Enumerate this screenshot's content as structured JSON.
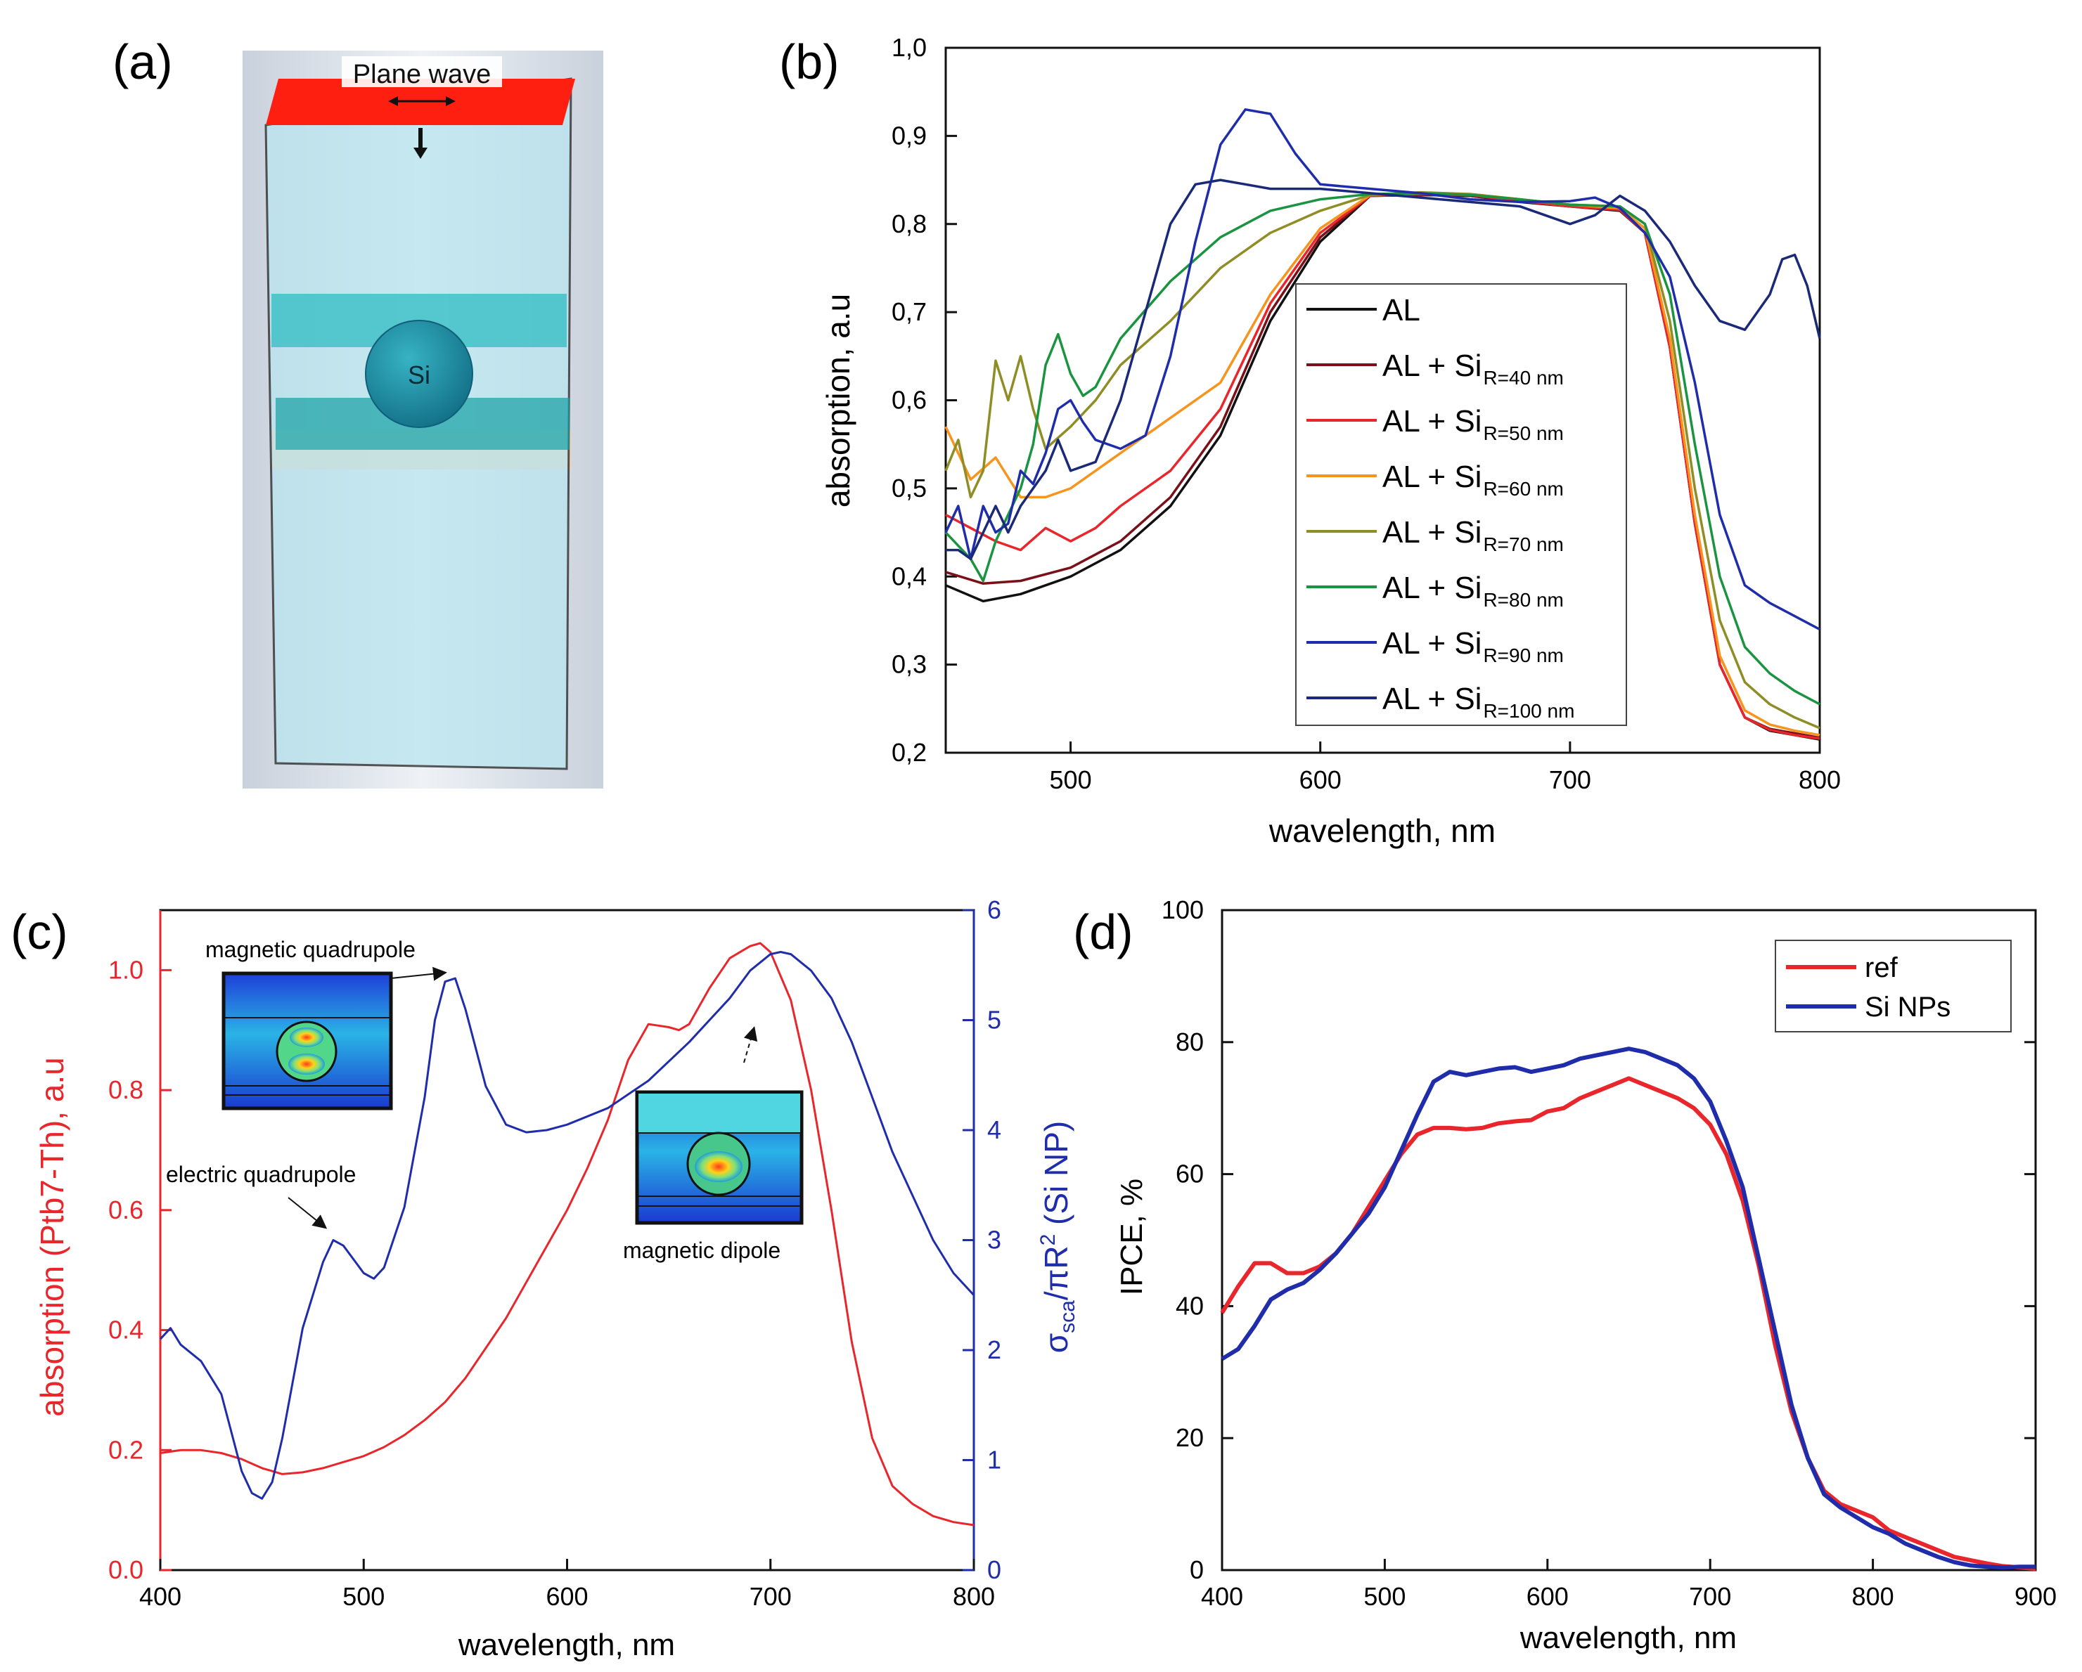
{
  "panel_labels": {
    "a": "(a)",
    "b": "(b)",
    "c": "(c)",
    "d": "(d)"
  },
  "schematic": {
    "plane_wave_label": "Plane wave",
    "particle_label": "Si",
    "colors": {
      "source": "#ff2a1a",
      "medium": "#b8e4ee",
      "layer": "#2bb5bd",
      "particle": "#1a7f95",
      "substrate": "#f0c8a0"
    }
  },
  "colors": {
    "red": "#e8262b",
    "blue": "#1f2dab",
    "black": "#111111"
  },
  "chart_data": [
    {
      "panel": "b",
      "type": "line",
      "xlabel": "wavelength, nm",
      "ylabel": "absorption, a.u",
      "xlim": [
        450,
        800
      ],
      "ylim": [
        0.2,
        1.0
      ],
      "xticks": [
        500,
        600,
        700,
        800
      ],
      "yticks": [
        "0,2",
        "0,3",
        "0,4",
        "0,5",
        "0,6",
        "0,7",
        "0,8",
        "0,9",
        "1,0"
      ],
      "legend_position": "center-right",
      "series": [
        {
          "name": "AL",
          "base": "AL",
          "sub": "",
          "color": "#111111",
          "x": [
            450,
            465,
            480,
            500,
            520,
            540,
            560,
            580,
            600,
            620,
            640,
            660,
            680,
            700,
            720,
            730,
            740,
            750,
            760,
            770,
            780,
            790,
            800
          ],
          "y": [
            0.39,
            0.372,
            0.38,
            0.4,
            0.43,
            0.48,
            0.56,
            0.69,
            0.78,
            0.832,
            0.833,
            0.832,
            0.825,
            0.82,
            0.815,
            0.79,
            0.66,
            0.46,
            0.3,
            0.24,
            0.225,
            0.22,
            0.215
          ]
        },
        {
          "name": "AL + Si R=40 nm",
          "base": "AL + Si",
          "sub": "R=40 nm",
          "color": "#7a1018",
          "x": [
            450,
            465,
            480,
            500,
            520,
            540,
            560,
            580,
            600,
            620,
            640,
            660,
            680,
            700,
            720,
            730,
            740,
            750,
            760,
            770,
            780,
            790,
            800
          ],
          "y": [
            0.405,
            0.392,
            0.395,
            0.41,
            0.44,
            0.49,
            0.57,
            0.7,
            0.785,
            0.832,
            0.833,
            0.832,
            0.826,
            0.821,
            0.816,
            0.79,
            0.66,
            0.46,
            0.3,
            0.24,
            0.227,
            0.222,
            0.217
          ]
        },
        {
          "name": "AL + Si R=50 nm",
          "base": "AL + Si",
          "sub": "R=50 nm",
          "color": "#e8262b",
          "x": [
            450,
            460,
            470,
            480,
            490,
            500,
            510,
            520,
            540,
            560,
            580,
            600,
            620,
            640,
            660,
            680,
            700,
            720,
            730,
            740,
            750,
            760,
            770,
            780,
            790,
            800
          ],
          "y": [
            0.47,
            0.455,
            0.44,
            0.43,
            0.455,
            0.44,
            0.455,
            0.48,
            0.52,
            0.59,
            0.71,
            0.79,
            0.832,
            0.834,
            0.833,
            0.826,
            0.82,
            0.816,
            0.79,
            0.66,
            0.46,
            0.3,
            0.24,
            0.226,
            0.22,
            0.216
          ]
        },
        {
          "name": "AL + Si R=60 nm",
          "base": "AL + Si",
          "sub": "R=60 nm",
          "color": "#f7941d",
          "x": [
            450,
            460,
            470,
            480,
            490,
            500,
            510,
            520,
            540,
            560,
            580,
            600,
            620,
            640,
            660,
            680,
            700,
            720,
            730,
            740,
            750,
            760,
            770,
            780,
            790,
            800
          ],
          "y": [
            0.57,
            0.51,
            0.535,
            0.49,
            0.49,
            0.5,
            0.52,
            0.54,
            0.58,
            0.62,
            0.72,
            0.795,
            0.833,
            0.835,
            0.834,
            0.828,
            0.822,
            0.818,
            0.795,
            0.67,
            0.47,
            0.31,
            0.248,
            0.232,
            0.225,
            0.22
          ]
        },
        {
          "name": "AL + Si R=70 nm",
          "base": "AL + Si",
          "sub": "R=70 nm",
          "color": "#8f8d25",
          "x": [
            450,
            455,
            460,
            465,
            470,
            475,
            480,
            485,
            490,
            500,
            510,
            520,
            540,
            560,
            580,
            600,
            620,
            640,
            660,
            680,
            700,
            720,
            730,
            740,
            750,
            760,
            770,
            780,
            790,
            800
          ],
          "y": [
            0.52,
            0.555,
            0.49,
            0.52,
            0.645,
            0.6,
            0.65,
            0.59,
            0.545,
            0.57,
            0.6,
            0.64,
            0.69,
            0.75,
            0.79,
            0.815,
            0.833,
            0.836,
            0.834,
            0.828,
            0.822,
            0.82,
            0.8,
            0.69,
            0.5,
            0.35,
            0.28,
            0.255,
            0.24,
            0.228
          ]
        },
        {
          "name": "AL + Si R=80 nm",
          "base": "AL + Si",
          "sub": "R=80 nm",
          "color": "#1a9440",
          "x": [
            450,
            460,
            465,
            470,
            480,
            485,
            490,
            495,
            500,
            505,
            510,
            520,
            540,
            560,
            580,
            600,
            620,
            640,
            660,
            680,
            700,
            720,
            730,
            740,
            750,
            760,
            770,
            780,
            790,
            800
          ],
          "y": [
            0.45,
            0.42,
            0.395,
            0.44,
            0.5,
            0.55,
            0.64,
            0.675,
            0.63,
            0.605,
            0.615,
            0.67,
            0.735,
            0.785,
            0.815,
            0.828,
            0.834,
            0.835,
            0.833,
            0.828,
            0.822,
            0.82,
            0.8,
            0.72,
            0.55,
            0.4,
            0.32,
            0.29,
            0.27,
            0.255
          ]
        },
        {
          "name": "AL + Si R=90 nm",
          "base": "AL + Si",
          "sub": "R=90 nm",
          "color": "#1f2dab",
          "x": [
            450,
            455,
            460,
            465,
            470,
            475,
            480,
            485,
            490,
            495,
            500,
            505,
            510,
            520,
            530,
            540,
            550,
            560,
            570,
            580,
            590,
            600,
            620,
            640,
            660,
            680,
            700,
            710,
            720,
            730,
            740,
            750,
            760,
            770,
            780,
            790,
            800
          ],
          "y": [
            0.45,
            0.48,
            0.42,
            0.48,
            0.45,
            0.46,
            0.52,
            0.505,
            0.54,
            0.59,
            0.6,
            0.575,
            0.555,
            0.545,
            0.56,
            0.65,
            0.78,
            0.89,
            0.93,
            0.925,
            0.88,
            0.845,
            0.84,
            0.835,
            0.828,
            0.825,
            0.826,
            0.83,
            0.818,
            0.79,
            0.74,
            0.62,
            0.47,
            0.39,
            0.37,
            0.355,
            0.34
          ]
        },
        {
          "name": "AL + Si R=100 nm",
          "base": "AL + Si",
          "sub": "R=100 nm",
          "color": "#1b2a78",
          "x": [
            450,
            455,
            460,
            465,
            470,
            475,
            480,
            485,
            490,
            495,
            500,
            510,
            520,
            530,
            540,
            550,
            560,
            570,
            580,
            600,
            620,
            640,
            660,
            680,
            700,
            710,
            720,
            730,
            740,
            750,
            760,
            770,
            780,
            785,
            790,
            795,
            800
          ],
          "y": [
            0.43,
            0.43,
            0.42,
            0.45,
            0.48,
            0.45,
            0.48,
            0.5,
            0.52,
            0.555,
            0.52,
            0.53,
            0.6,
            0.7,
            0.8,
            0.845,
            0.85,
            0.845,
            0.84,
            0.84,
            0.835,
            0.83,
            0.825,
            0.82,
            0.8,
            0.81,
            0.832,
            0.815,
            0.78,
            0.73,
            0.69,
            0.68,
            0.72,
            0.76,
            0.765,
            0.73,
            0.67
          ]
        }
      ]
    },
    {
      "panel": "c",
      "type": "line",
      "xlabel": "wavelength, nm",
      "ylabel_left": "absorption (Ptb7-Th), a.u",
      "ylabel_right_prefix": "σ",
      "ylabel_right_sub": "sca",
      "ylabel_right_mid": "/πR",
      "ylabel_right_sup": "2",
      "ylabel_right_suffix": " (Si NP)",
      "xlim": [
        400,
        800
      ],
      "ylim_left": [
        0,
        1.1
      ],
      "ylim_right": [
        0,
        6
      ],
      "xticks": [
        "400",
        "500",
        "600",
        "700",
        "800"
      ],
      "yticks_left": [
        "0.0",
        "0.2",
        "0.4",
        "0.6",
        "0.8",
        "1.0"
      ],
      "yticks_right": [
        "0",
        "1",
        "2",
        "3",
        "4",
        "5",
        "6"
      ],
      "annotations": [
        "magnetic quadrupole",
        "electric quadrupole",
        "magnetic dipole"
      ],
      "series": [
        {
          "name": "absorption (Ptb7-Th)",
          "axis": "left",
          "color": "#e8262b",
          "x": [
            400,
            410,
            420,
            430,
            440,
            450,
            460,
            470,
            480,
            490,
            500,
            510,
            520,
            530,
            540,
            550,
            560,
            570,
            580,
            590,
            600,
            610,
            620,
            630,
            640,
            650,
            655,
            660,
            670,
            680,
            690,
            695,
            700,
            710,
            720,
            730,
            740,
            750,
            760,
            770,
            780,
            790,
            800
          ],
          "y": [
            0.195,
            0.2,
            0.2,
            0.195,
            0.185,
            0.17,
            0.16,
            0.163,
            0.17,
            0.18,
            0.19,
            0.205,
            0.225,
            0.25,
            0.28,
            0.32,
            0.37,
            0.42,
            0.48,
            0.54,
            0.6,
            0.67,
            0.75,
            0.85,
            0.91,
            0.905,
            0.9,
            0.91,
            0.97,
            1.02,
            1.04,
            1.045,
            1.03,
            0.95,
            0.8,
            0.6,
            0.38,
            0.22,
            0.14,
            0.11,
            0.09,
            0.08,
            0.075
          ]
        },
        {
          "name": "σsca/πR² (Si NP)",
          "axis": "right",
          "color": "#1f2dab",
          "x": [
            400,
            405,
            410,
            420,
            430,
            440,
            445,
            450,
            455,
            460,
            470,
            480,
            485,
            490,
            500,
            505,
            510,
            520,
            530,
            535,
            540,
            545,
            550,
            560,
            570,
            580,
            590,
            600,
            620,
            640,
            660,
            680,
            690,
            700,
            705,
            710,
            720,
            730,
            740,
            750,
            760,
            770,
            780,
            790,
            800
          ],
          "y": [
            2.1,
            2.2,
            2.05,
            1.9,
            1.6,
            0.9,
            0.7,
            0.65,
            0.8,
            1.2,
            2.2,
            2.8,
            3.0,
            2.95,
            2.7,
            2.65,
            2.75,
            3.3,
            4.3,
            5.0,
            5.35,
            5.38,
            5.1,
            4.4,
            4.05,
            3.98,
            4.0,
            4.05,
            4.2,
            4.45,
            4.8,
            5.2,
            5.45,
            5.6,
            5.62,
            5.6,
            5.45,
            5.2,
            4.8,
            4.3,
            3.8,
            3.4,
            3.0,
            2.7,
            2.5
          ]
        }
      ]
    },
    {
      "panel": "d",
      "type": "line",
      "xlabel": "wavelength, nm",
      "ylabel": "IPCE, %",
      "xlim": [
        400,
        900
      ],
      "ylim": [
        0,
        100
      ],
      "xticks": [
        "400",
        "500",
        "600",
        "700",
        "800",
        "900"
      ],
      "yticks": [
        "0",
        "20",
        "40",
        "60",
        "80",
        "100"
      ],
      "legend_position": "top-right",
      "series": [
        {
          "name": "ref",
          "color": "#e8262b",
          "x": [
            400,
            410,
            420,
            430,
            440,
            450,
            460,
            470,
            480,
            490,
            500,
            510,
            520,
            530,
            540,
            550,
            560,
            570,
            580,
            590,
            600,
            610,
            620,
            630,
            640,
            650,
            660,
            670,
            680,
            690,
            700,
            710,
            720,
            730,
            740,
            750,
            760,
            770,
            780,
            790,
            800,
            810,
            820,
            830,
            840,
            850,
            860,
            870,
            880,
            890,
            900
          ],
          "y": [
            39,
            43,
            46.5,
            46.5,
            45,
            45,
            46,
            48,
            51,
            55,
            59,
            63,
            66,
            67,
            67,
            66.8,
            67,
            67.7,
            68,
            68.2,
            69.5,
            70,
            71.5,
            72.5,
            73.5,
            74.5,
            73.5,
            72.5,
            71.5,
            70,
            67.5,
            63,
            56,
            46,
            34,
            24,
            17,
            12,
            10,
            9,
            8,
            6,
            5,
            4,
            3,
            2,
            1.5,
            1,
            0.6,
            0.4,
            0.2
          ]
        },
        {
          "name": "Si NPs",
          "color": "#1f2dab",
          "x": [
            400,
            410,
            420,
            430,
            440,
            450,
            460,
            470,
            480,
            490,
            500,
            510,
            520,
            530,
            540,
            550,
            560,
            570,
            580,
            590,
            600,
            610,
            620,
            630,
            640,
            650,
            660,
            670,
            680,
            690,
            700,
            710,
            720,
            730,
            740,
            750,
            760,
            770,
            780,
            790,
            800,
            810,
            820,
            830,
            840,
            850,
            860,
            870,
            880,
            890,
            900
          ],
          "y": [
            32,
            33.5,
            37,
            41,
            42.5,
            43.5,
            45.5,
            48,
            51,
            54,
            58,
            63.5,
            69,
            74,
            75.5,
            75,
            75.5,
            76,
            76.2,
            75.5,
            76,
            76.5,
            77.5,
            78,
            78.5,
            79,
            78.5,
            77.5,
            76.5,
            74.5,
            71,
            65,
            58,
            47,
            36,
            25,
            17,
            11.5,
            9.5,
            8,
            6.5,
            5.5,
            4,
            3,
            2,
            1.2,
            0.7,
            0.5,
            0.4,
            0.5,
            0.5
          ]
        }
      ]
    }
  ]
}
